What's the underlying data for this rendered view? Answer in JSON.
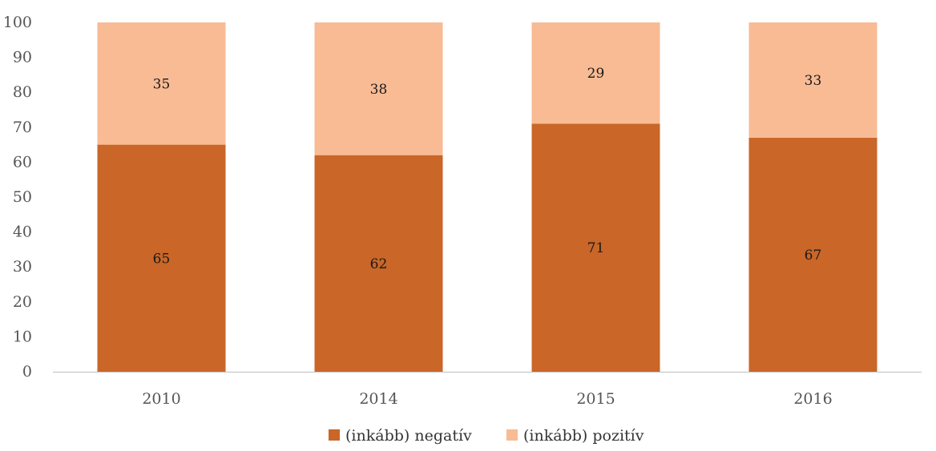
{
  "chart_data": {
    "type": "bar",
    "stacked": true,
    "categories": [
      "2010",
      "2014",
      "2015",
      "2016"
    ],
    "series": [
      {
        "name": "(inkább) negatív",
        "values": [
          65,
          62,
          71,
          67
        ],
        "color": "#c96628"
      },
      {
        "name": "(inkább) pozitív",
        "values": [
          35,
          38,
          29,
          33
        ],
        "color": "#f8bb94"
      }
    ],
    "ylim": [
      0,
      100
    ],
    "yticks": [
      0,
      10,
      20,
      30,
      40,
      50,
      60,
      70,
      80,
      90,
      100
    ],
    "grid": false,
    "legend": "bottom-center",
    "xlabel": "",
    "ylabel": ""
  }
}
